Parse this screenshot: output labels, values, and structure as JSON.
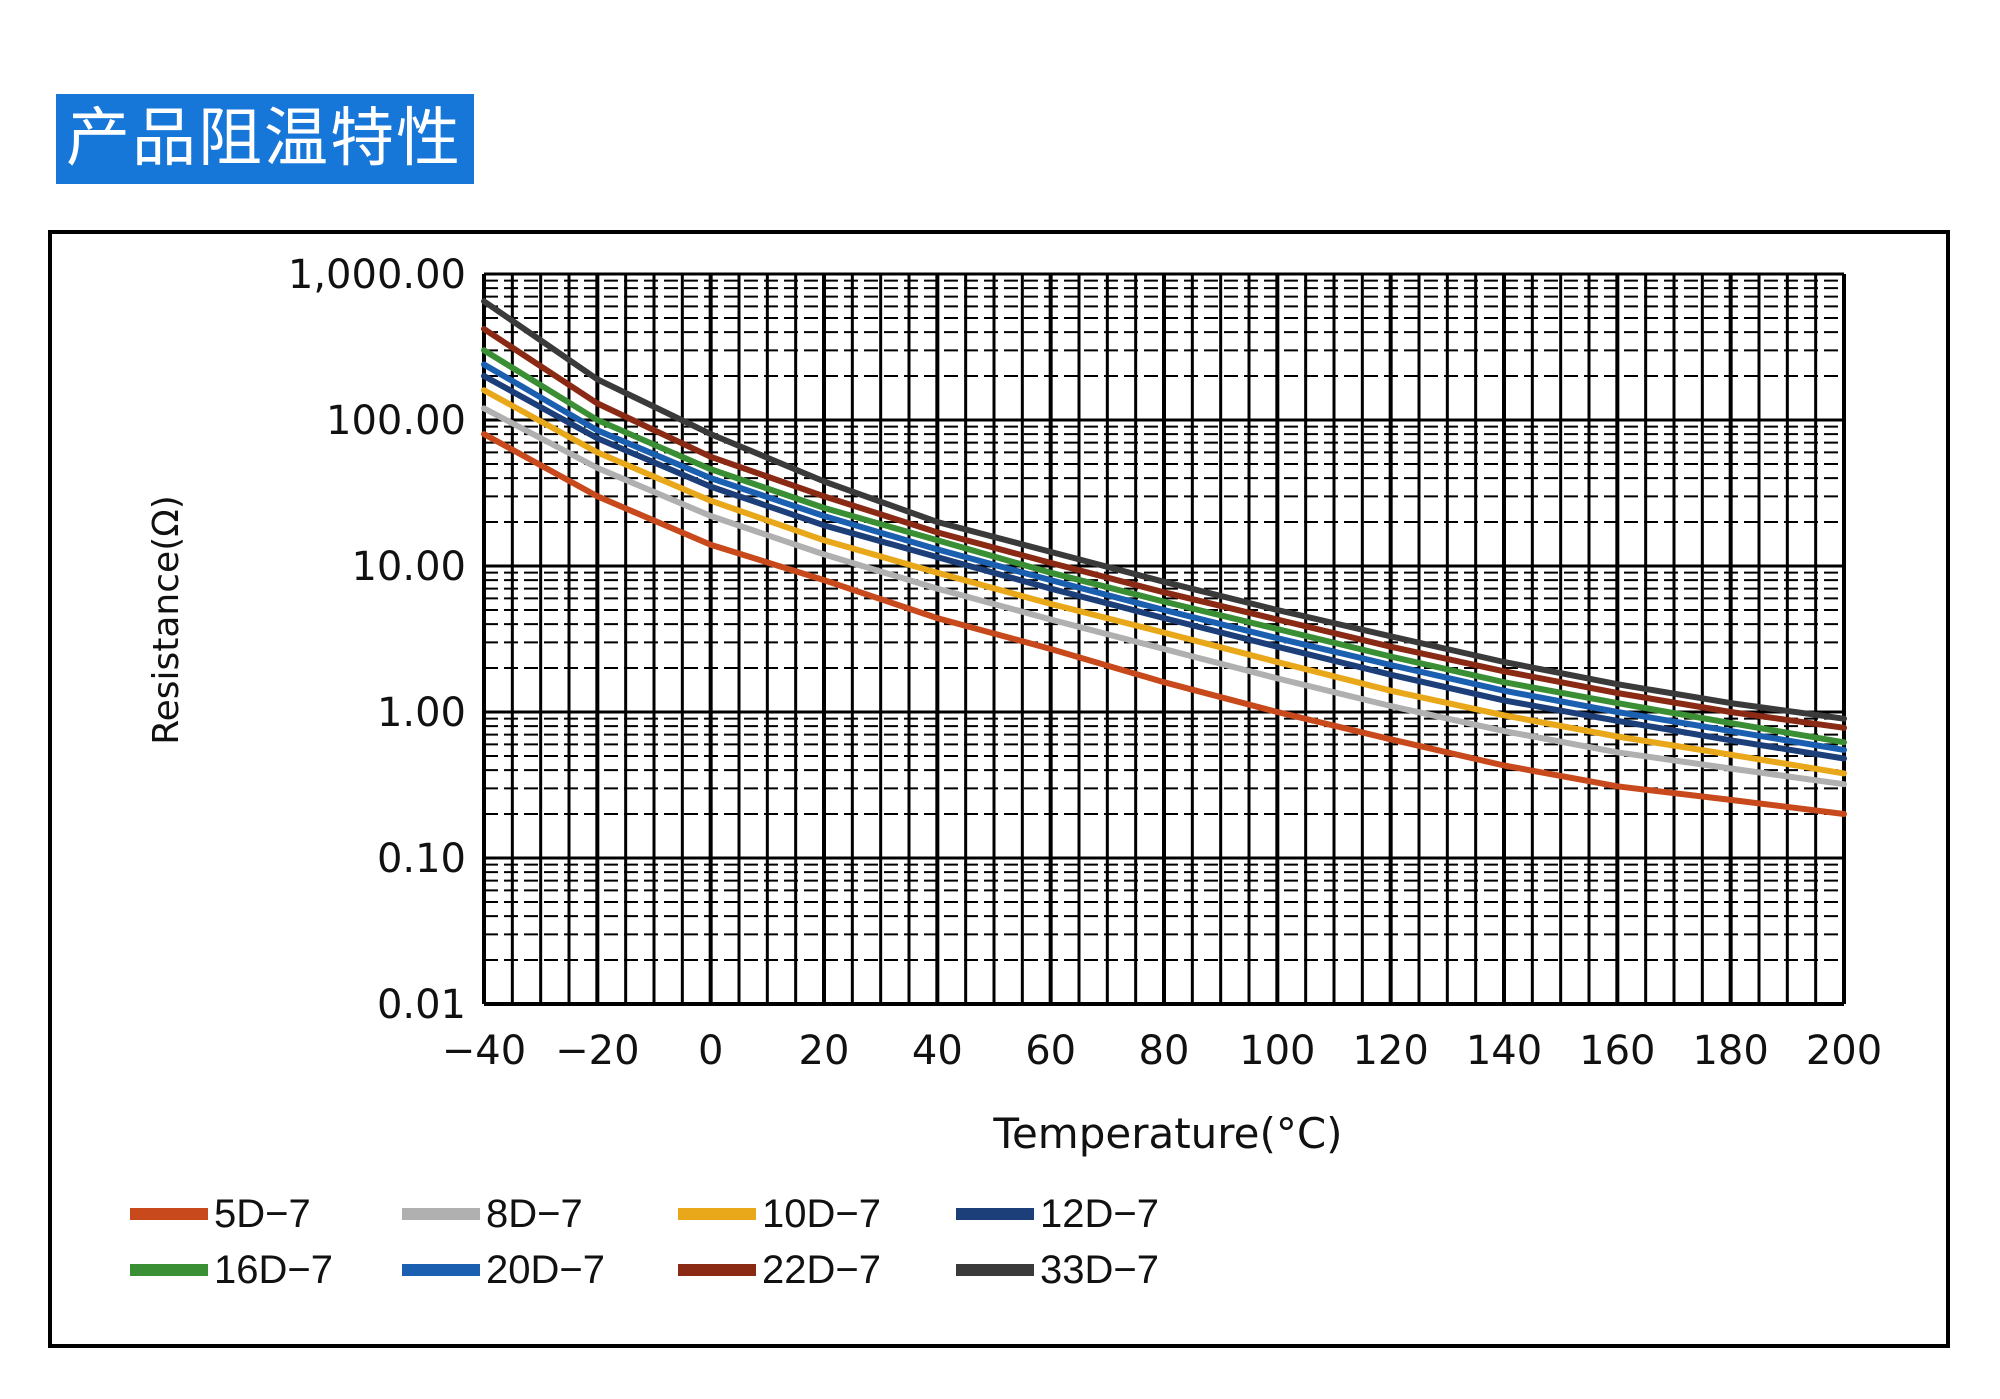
{
  "page": {
    "banner_title": "产品阻温特性"
  },
  "chart_data": {
    "type": "line",
    "xlabel": "Temperature(°C)",
    "ylabel": "Resistance(Ω)",
    "x_ticks": [
      "−40",
      "−20",
      "0",
      "20",
      "40",
      "60",
      "80",
      "100",
      "120",
      "140",
      "160",
      "180",
      "200"
    ],
    "y_ticks": [
      "1,000.00",
      "100.00",
      "10.00",
      "1.00",
      "0.10",
      "0.01"
    ],
    "xlim": [
      -40,
      200
    ],
    "ylim": [
      0.01,
      1000
    ],
    "y_scale": "log",
    "grid": true,
    "legend_position": "bottom-left",
    "x": [
      -40,
      -20,
      0,
      20,
      40,
      60,
      80,
      100,
      120,
      140,
      160,
      180,
      200
    ],
    "series": [
      {
        "name": "5D−7",
        "color": "#c84a1c",
        "values": [
          80,
          30,
          14,
          8,
          4.4,
          2.7,
          1.6,
          1.0,
          0.65,
          0.43,
          0.31,
          0.25,
          0.2
        ]
      },
      {
        "name": "8D−7",
        "color": "#b0b0b0",
        "values": [
          120,
          47,
          22,
          12,
          7.0,
          4.3,
          2.7,
          1.7,
          1.1,
          0.74,
          0.53,
          0.41,
          0.32
        ]
      },
      {
        "name": "10D−7",
        "color": "#e8a81a",
        "values": [
          160,
          60,
          28,
          15,
          9.0,
          5.5,
          3.5,
          2.2,
          1.4,
          0.95,
          0.68,
          0.51,
          0.38
        ]
      },
      {
        "name": "12D−7",
        "color": "#1c3f7a",
        "values": [
          200,
          75,
          35,
          19,
          11.5,
          7.0,
          4.4,
          2.8,
          1.8,
          1.2,
          0.87,
          0.64,
          0.48
        ]
      },
      {
        "name": "16D−7",
        "color": "#3a8f35",
        "values": [
          300,
          100,
          46,
          25,
          15,
          9.0,
          5.7,
          3.7,
          2.4,
          1.6,
          1.15,
          0.84,
          0.62
        ]
      },
      {
        "name": "20D−7",
        "color": "#1a5fb0",
        "values": [
          240,
          85,
          40,
          22,
          13,
          8.0,
          5.0,
          3.2,
          2.1,
          1.4,
          1.0,
          0.74,
          0.55
        ]
      },
      {
        "name": "22D−7",
        "color": "#8a2a14",
        "values": [
          420,
          130,
          56,
          30,
          17,
          10.5,
          6.6,
          4.3,
          2.8,
          1.9,
          1.35,
          1.0,
          0.78
        ]
      },
      {
        "name": "33D−7",
        "color": "#3a3a3a",
        "values": [
          650,
          190,
          80,
          38,
          20,
          12.5,
          7.8,
          5.0,
          3.3,
          2.2,
          1.55,
          1.15,
          0.9
        ]
      }
    ]
  }
}
